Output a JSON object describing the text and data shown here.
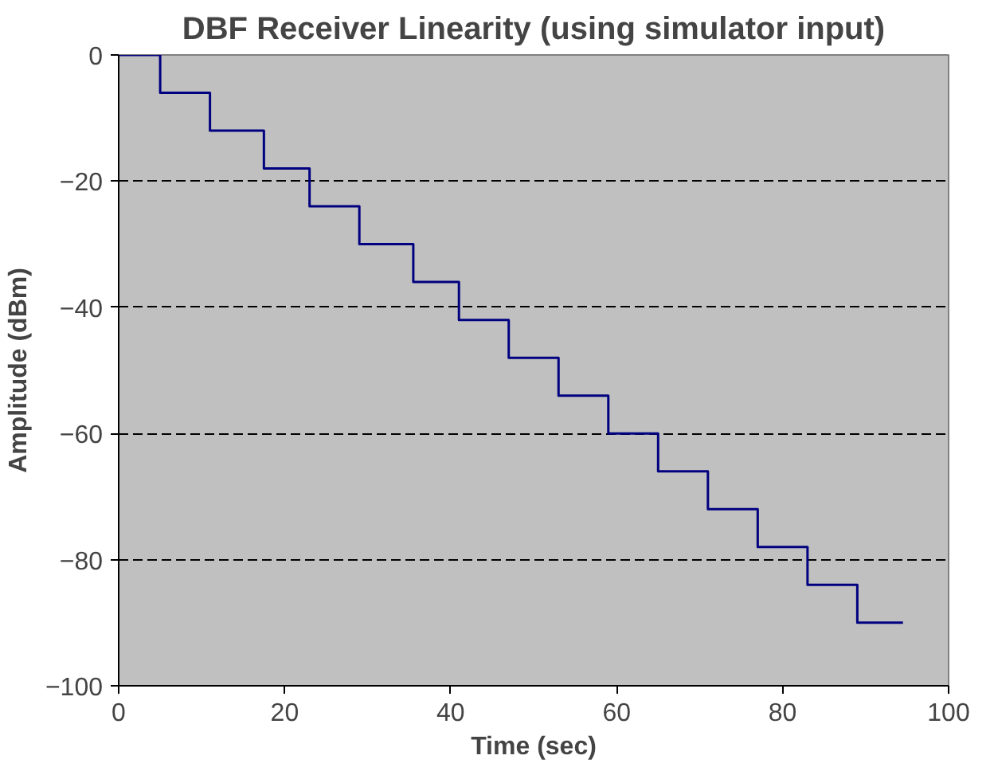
{
  "chart_data": {
    "type": "step",
    "title": "DBF Receiver Linearity (using simulator input)",
    "xlabel": "Time (sec)",
    "ylabel": "Amplitude (dBm)",
    "x": [
      0,
      5,
      11,
      17.5,
      23,
      29,
      35.5,
      41,
      47,
      53,
      59,
      65,
      71,
      77,
      83,
      89,
      94.5
    ],
    "series": [
      {
        "color": "#000080",
        "values": [
          0,
          -6,
          -12,
          -18,
          -24,
          -30,
          -36,
          -42,
          -48,
          -54,
          -60,
          -66,
          -72,
          -78,
          -84,
          -90,
          -90
        ]
      }
    ],
    "xlim": [
      0,
      100
    ],
    "ylim": [
      -100,
      0
    ],
    "xticks": [
      0,
      20,
      40,
      60,
      80,
      100
    ],
    "yticks": [
      -100,
      -80,
      -60,
      -40,
      -20,
      0
    ],
    "grid": "y"
  }
}
